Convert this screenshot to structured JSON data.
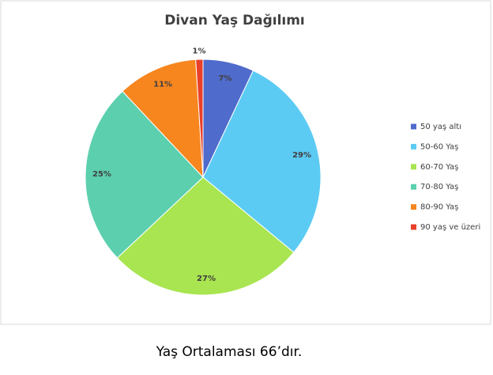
{
  "chart_data": {
    "type": "pie",
    "title": "Divan Yaş Dağılımı",
    "categories": [
      "50 yaş altı",
      "50-60 Yaş",
      "60-70 Yaş",
      "70-80 Yaş",
      "80-90 Yaş",
      "90 yaş ve üzeri"
    ],
    "values": [
      7,
      29,
      27,
      25,
      11,
      1
    ],
    "value_labels": [
      "7%",
      "29%",
      "27%",
      "25%",
      "11%",
      "1%"
    ],
    "colors": [
      "#4f6bcb",
      "#5ccbf3",
      "#a8e550",
      "#5ccfae",
      "#f7861f",
      "#e8402a"
    ],
    "legend": "right"
  },
  "caption": "Yaş Ortalaması 66’dır."
}
